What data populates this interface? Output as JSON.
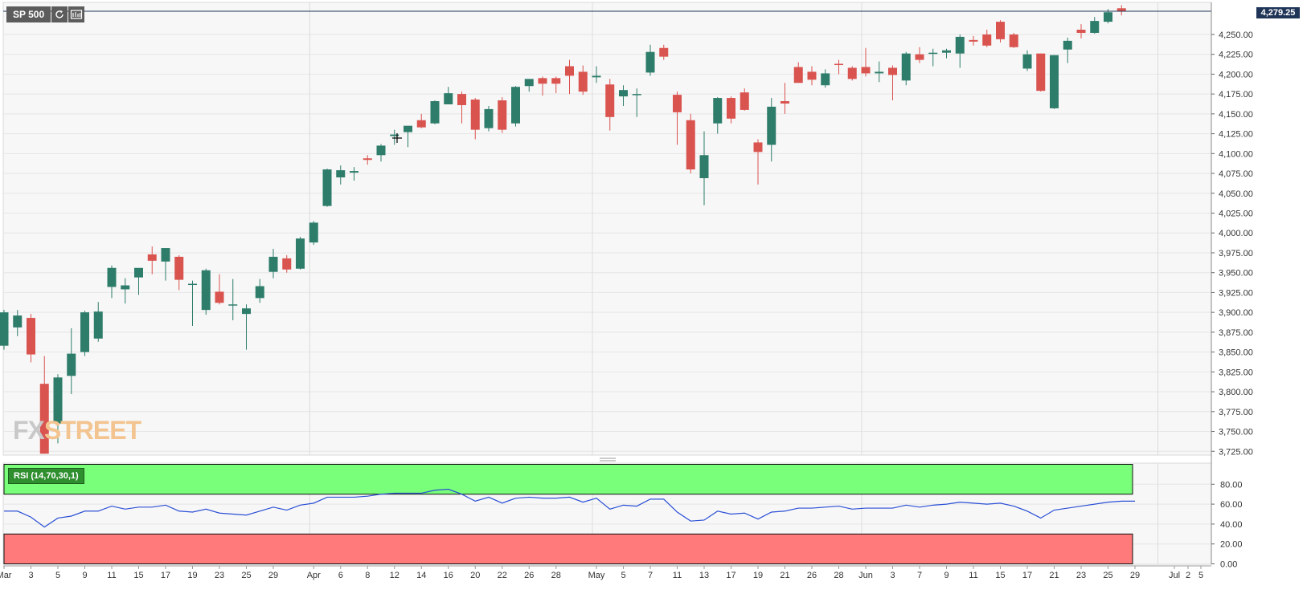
{
  "symbol": {
    "label": "SP 500",
    "refresh_icon": "refresh-icon",
    "settings_icon": "chart-settings-icon"
  },
  "last_price_label": "4,279.25",
  "watermark": {
    "part1": "FX",
    "part2": "STREET"
  },
  "rsi": {
    "label": "RSI (14,70,30,1)"
  },
  "colors": {
    "up": "#2e7d6b",
    "down": "#d9534f",
    "rsi_line": "#2a4fd6",
    "overbought_zone": "#79ff79",
    "oversold_zone": "#ff7a7a",
    "price_line": "#1f3557",
    "grid": "#e6e6e6",
    "plot_bg": "#f7f7f7"
  },
  "chart_data": [
    {
      "type": "candlestick",
      "title": "",
      "ylim": [
        3717,
        4288
      ],
      "y_ticks": [
        "3,725.00",
        "3,750.00",
        "3,775.00",
        "3,800.00",
        "3,825.00",
        "3,850.00",
        "3,875.00",
        "3,900.00",
        "3,925.00",
        "3,950.00",
        "3,975.00",
        "4,000.00",
        "4,025.00",
        "4,050.00",
        "4,075.00",
        "4,100.00",
        "4,125.00",
        "4,150.00",
        "4,175.00",
        "4,200.00",
        "4,225.00",
        "4,250.00"
      ],
      "x_ticks": [
        {
          "label": "Mar",
          "i": 0
        },
        {
          "label": "3",
          "i": 2
        },
        {
          "label": "5",
          "i": 4
        },
        {
          "label": "9",
          "i": 6
        },
        {
          "label": "11",
          "i": 8
        },
        {
          "label": "15",
          "i": 10
        },
        {
          "label": "17",
          "i": 12
        },
        {
          "label": "19",
          "i": 14
        },
        {
          "label": "23",
          "i": 16
        },
        {
          "label": "25",
          "i": 18
        },
        {
          "label": "29",
          "i": 20
        },
        {
          "label": "Apr",
          "i": 23
        },
        {
          "label": "6",
          "i": 25
        },
        {
          "label": "8",
          "i": 27
        },
        {
          "label": "12",
          "i": 29
        },
        {
          "label": "14",
          "i": 31
        },
        {
          "label": "16",
          "i": 33
        },
        {
          "label": "20",
          "i": 35
        },
        {
          "label": "22",
          "i": 37
        },
        {
          "label": "26",
          "i": 39
        },
        {
          "label": "28",
          "i": 41
        },
        {
          "label": "May",
          "i": 44
        },
        {
          "label": "5",
          "i": 46
        },
        {
          "label": "7",
          "i": 48
        },
        {
          "label": "11",
          "i": 50
        },
        {
          "label": "13",
          "i": 52
        },
        {
          "label": "17",
          "i": 54
        },
        {
          "label": "19",
          "i": 56
        },
        {
          "label": "21",
          "i": 58
        },
        {
          "label": "26",
          "i": 60
        },
        {
          "label": "28",
          "i": 62
        },
        {
          "label": "Jun",
          "i": 64
        },
        {
          "label": "3",
          "i": 66
        },
        {
          "label": "7",
          "i": 68
        },
        {
          "label": "9",
          "i": 70
        },
        {
          "label": "11",
          "i": 72
        },
        {
          "label": "15",
          "i": 74
        },
        {
          "label": "17",
          "i": 76
        },
        {
          "label": "21",
          "i": 78
        },
        {
          "label": "23",
          "i": 80
        },
        {
          "label": "25",
          "i": 82
        },
        {
          "label": "29",
          "i": 84
        },
        {
          "label": "Jul",
          "i": 86
        },
        {
          "label": "2",
          "i": 87
        },
        {
          "label": "5",
          "i": 88
        }
      ],
      "month_separators": [
        23,
        44,
        64,
        86
      ],
      "last_price": 4279.25,
      "candles": [
        {
          "o": 3858,
          "h": 3903,
          "l": 3853,
          "c": 3900
        },
        {
          "o": 3881,
          "h": 3903,
          "l": 3870,
          "c": 3896
        },
        {
          "o": 3893,
          "h": 3898,
          "l": 3837,
          "c": 3847
        },
        {
          "o": 3810,
          "h": 3845,
          "l": 3722,
          "c": 3722
        },
        {
          "o": 3760,
          "h": 3822,
          "l": 3735,
          "c": 3818
        },
        {
          "o": 3820,
          "h": 3880,
          "l": 3797,
          "c": 3848
        },
        {
          "o": 3850,
          "h": 3902,
          "l": 3845,
          "c": 3900
        },
        {
          "o": 3867,
          "h": 3913,
          "l": 3863,
          "c": 3901
        },
        {
          "o": 3932,
          "h": 3959,
          "l": 3918,
          "c": 3956
        },
        {
          "o": 3929,
          "h": 3943,
          "l": 3911,
          "c": 3934
        },
        {
          "o": 3944,
          "h": 3955,
          "l": 3922,
          "c": 3956
        },
        {
          "o": 3973,
          "h": 3983,
          "l": 3948,
          "c": 3965
        },
        {
          "o": 3964,
          "h": 3981,
          "l": 3940,
          "c": 3981
        },
        {
          "o": 3970,
          "h": 3972,
          "l": 3928,
          "c": 3941
        },
        {
          "o": 3935,
          "h": 3940,
          "l": 3883,
          "c": 3936
        },
        {
          "o": 3903,
          "h": 3955,
          "l": 3897,
          "c": 3953
        },
        {
          "o": 3926,
          "h": 3948,
          "l": 3910,
          "c": 3912
        },
        {
          "o": 3910,
          "h": 3942,
          "l": 3890,
          "c": 3910
        },
        {
          "o": 3898,
          "h": 3910,
          "l": 3853,
          "c": 3905
        },
        {
          "o": 3918,
          "h": 3942,
          "l": 3912,
          "c": 3933
        },
        {
          "o": 3951,
          "h": 3980,
          "l": 3943,
          "c": 3970
        },
        {
          "o": 3968,
          "h": 3972,
          "l": 3950,
          "c": 3954
        },
        {
          "o": 3955,
          "h": 3995,
          "l": 3954,
          "c": 3993
        },
        {
          "o": 3988,
          "h": 4015,
          "l": 3985,
          "c": 4013
        },
        {
          "o": 4034,
          "h": 4081,
          "l": 4033,
          "c": 4080
        },
        {
          "o": 4070,
          "h": 4085,
          "l": 4061,
          "c": 4079
        },
        {
          "o": 4076,
          "h": 4083,
          "l": 4066,
          "c": 4078
        },
        {
          "o": 4094,
          "h": 4098,
          "l": 4086,
          "c": 4092
        },
        {
          "o": 4098,
          "h": 4112,
          "l": 4090,
          "c": 4110
        },
        {
          "o": 4122,
          "h": 4130,
          "l": 4111,
          "c": 4124
        },
        {
          "o": 4127,
          "h": 4135,
          "l": 4108,
          "c": 4135
        },
        {
          "o": 4142,
          "h": 4150,
          "l": 4132,
          "c": 4133
        },
        {
          "o": 4138,
          "h": 4167,
          "l": 4137,
          "c": 4166
        },
        {
          "o": 4162,
          "h": 4184,
          "l": 4162,
          "c": 4176
        },
        {
          "o": 4175,
          "h": 4178,
          "l": 4138,
          "c": 4161
        },
        {
          "o": 4168,
          "h": 4170,
          "l": 4118,
          "c": 4130
        },
        {
          "o": 4132,
          "h": 4160,
          "l": 4128,
          "c": 4156
        },
        {
          "o": 4167,
          "h": 4171,
          "l": 4126,
          "c": 4130
        },
        {
          "o": 4138,
          "h": 4185,
          "l": 4134,
          "c": 4184
        },
        {
          "o": 4185,
          "h": 4192,
          "l": 4178,
          "c": 4194
        },
        {
          "o": 4195,
          "h": 4197,
          "l": 4173,
          "c": 4188
        },
        {
          "o": 4195,
          "h": 4197,
          "l": 4176,
          "c": 4188
        },
        {
          "o": 4210,
          "h": 4218,
          "l": 4175,
          "c": 4198
        },
        {
          "o": 4203,
          "h": 4211,
          "l": 4174,
          "c": 4178
        },
        {
          "o": 4196,
          "h": 4210,
          "l": 4189,
          "c": 4198
        },
        {
          "o": 4187,
          "h": 4194,
          "l": 4129,
          "c": 4146
        },
        {
          "o": 4172,
          "h": 4186,
          "l": 4160,
          "c": 4180
        },
        {
          "o": 4175,
          "h": 4182,
          "l": 4146,
          "c": 4175
        },
        {
          "o": 4202,
          "h": 4237,
          "l": 4198,
          "c": 4228
        },
        {
          "o": 4233,
          "h": 4237,
          "l": 4218,
          "c": 4222
        },
        {
          "o": 4174,
          "h": 4178,
          "l": 4111,
          "c": 4152
        },
        {
          "o": 4142,
          "h": 4150,
          "l": 4075,
          "c": 4080
        },
        {
          "o": 4069,
          "h": 4128,
          "l": 4035,
          "c": 4098
        },
        {
          "o": 4138,
          "h": 4171,
          "l": 4125,
          "c": 4170
        },
        {
          "o": 4170,
          "h": 4172,
          "l": 4138,
          "c": 4144
        },
        {
          "o": 4177,
          "h": 4182,
          "l": 4154,
          "c": 4155
        },
        {
          "o": 4114,
          "h": 4118,
          "l": 4061,
          "c": 4102
        },
        {
          "o": 4111,
          "h": 4170,
          "l": 4090,
          "c": 4159
        },
        {
          "o": 4166,
          "h": 4189,
          "l": 4150,
          "c": 4163
        },
        {
          "o": 4209,
          "h": 4215,
          "l": 4192,
          "c": 4189
        },
        {
          "o": 4203,
          "h": 4210,
          "l": 4186,
          "c": 4193
        },
        {
          "o": 4186,
          "h": 4206,
          "l": 4183,
          "c": 4201
        },
        {
          "o": 4213,
          "h": 4218,
          "l": 4200,
          "c": 4212
        },
        {
          "o": 4208,
          "h": 4210,
          "l": 4192,
          "c": 4194
        },
        {
          "o": 4209,
          "h": 4233,
          "l": 4197,
          "c": 4201
        },
        {
          "o": 4201,
          "h": 4216,
          "l": 4190,
          "c": 4203
        },
        {
          "o": 4208,
          "h": 4211,
          "l": 4167,
          "c": 4199
        },
        {
          "o": 4192,
          "h": 4228,
          "l": 4186,
          "c": 4226
        },
        {
          "o": 4225,
          "h": 4234,
          "l": 4214,
          "c": 4218
        },
        {
          "o": 4227,
          "h": 4232,
          "l": 4210,
          "c": 4227
        },
        {
          "o": 4227,
          "h": 4232,
          "l": 4220,
          "c": 4230
        },
        {
          "o": 4226,
          "h": 4250,
          "l": 4208,
          "c": 4247
        },
        {
          "o": 4243,
          "h": 4248,
          "l": 4236,
          "c": 4241
        },
        {
          "o": 4250,
          "h": 4256,
          "l": 4234,
          "c": 4236
        },
        {
          "o": 4266,
          "h": 4268,
          "l": 4240,
          "c": 4244
        },
        {
          "o": 4250,
          "h": 4252,
          "l": 4233,
          "c": 4234
        },
        {
          "o": 4207,
          "h": 4230,
          "l": 4204,
          "c": 4225
        },
        {
          "o": 4226,
          "h": 4226,
          "l": 4178,
          "c": 4179
        },
        {
          "o": 4157,
          "h": 4224,
          "l": 4156,
          "c": 4224
        },
        {
          "o": 4231,
          "h": 4246,
          "l": 4214,
          "c": 4242
        },
        {
          "o": 4256,
          "h": 4263,
          "l": 4245,
          "c": 4252
        },
        {
          "o": 4252,
          "h": 4272,
          "l": 4251,
          "c": 4267
        },
        {
          "o": 4266,
          "h": 4282,
          "l": 4264,
          "c": 4278
        },
        {
          "o": 4283,
          "h": 4287,
          "l": 4274,
          "c": 4279
        }
      ]
    },
    {
      "type": "line",
      "title": "",
      "series": [
        {
          "values": [
            53,
            53,
            47,
            37,
            46,
            48,
            53,
            53,
            58,
            55,
            57,
            57,
            59,
            53,
            52,
            55,
            51,
            50,
            49,
            53,
            57,
            54,
            59,
            61,
            67,
            67,
            67,
            68,
            70,
            71,
            71,
            71,
            74,
            75,
            70,
            63,
            67,
            61,
            66,
            67,
            66,
            66,
            67,
            62,
            66,
            55,
            59,
            58,
            65,
            65,
            52,
            43,
            44,
            53,
            50,
            51,
            45,
            52,
            53,
            56,
            56,
            57,
            58,
            55,
            56,
            56,
            56,
            59,
            57,
            59,
            60,
            62,
            61,
            60,
            61,
            58,
            53,
            46,
            54,
            56,
            58,
            60,
            62,
            63,
            63
          ]
        }
      ],
      "ylim": [
        0,
        100
      ],
      "y_ticks": [
        "0.00",
        "20.00",
        "40.00",
        "60.00",
        "80.00"
      ],
      "overbought": 70,
      "oversold": 30
    }
  ]
}
